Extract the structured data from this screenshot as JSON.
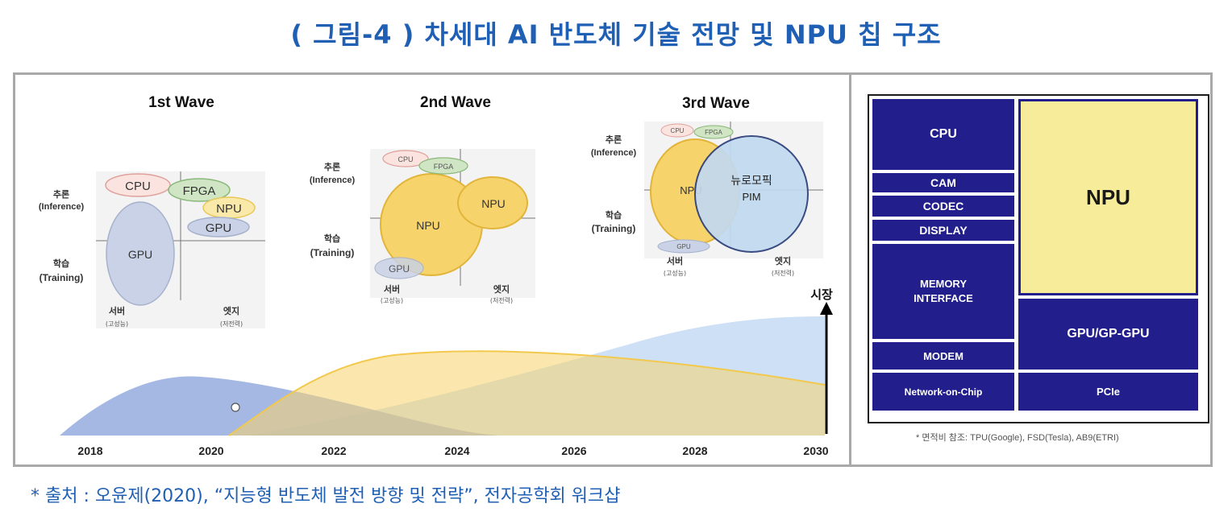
{
  "title": "( 그림-4 ) 차세대 AI 반도체 기술 전망 및 NPU 칩 구조",
  "waves": [
    {
      "heading": "1st Wave",
      "inference": "추론",
      "inference_en": "(Inference)",
      "training": "학습",
      "training_en": "(Training)",
      "server": "서버",
      "server_sub": "(고성능)",
      "edge": "엣지",
      "edge_sub": "(저전력)",
      "chips": [
        "CPU",
        "FPGA",
        "NPU",
        "GPU",
        "GPU"
      ]
    },
    {
      "heading": "2nd Wave",
      "inference": "추론",
      "inference_en": "(Inference)",
      "training": "학습",
      "training_en": "(Training)",
      "server": "서버",
      "server_sub": "(고성능)",
      "edge": "엣지",
      "edge_sub": "(저전력)",
      "chips": [
        "CPU",
        "FPGA",
        "NPU",
        "NPU",
        "GPU"
      ]
    },
    {
      "heading": "3rd Wave",
      "inference": "추론",
      "inference_en": "(Inference)",
      "training": "학습",
      "training_en": "(Training)",
      "server": "서버",
      "server_sub": "(고성능)",
      "edge": "엣지",
      "edge_sub": "(저전력)",
      "chips": [
        "CPU",
        "FPGA",
        "NPU",
        "뉴로모픽",
        "PIM",
        "GPU"
      ]
    }
  ],
  "market_label": "시장",
  "years": [
    "2018",
    "2020",
    "2022",
    "2024",
    "2026",
    "2028",
    "2030"
  ],
  "chip_structure": {
    "blocks": {
      "cpu": "CPU",
      "cam": "CAM",
      "codec": "CODEC",
      "display": "DISPLAY",
      "memory": "MEMORY INTERFACE",
      "modem": "MODEM",
      "noc": "Network-on-Chip",
      "npu": "NPU",
      "gpu": "GPU/GP-GPU",
      "pcie": "PCIe"
    },
    "note": "* 면적비 참조: TPU(Google), FSD(Tesla), AB9(ETRI)"
  },
  "source": "* 출처 : 오윤제(2020), “지능형 반도체 발전 방향 및 전략”, 전자공학회 워크샵",
  "colors": {
    "title": "#1f5fb4",
    "chip_block": "#221f8c",
    "npu_fill": "#f6ec99",
    "gpu_area": "#8ea6dd",
    "npu_area": "#f7d36b",
    "neuromorphic_area": "#bcd6f2"
  }
}
